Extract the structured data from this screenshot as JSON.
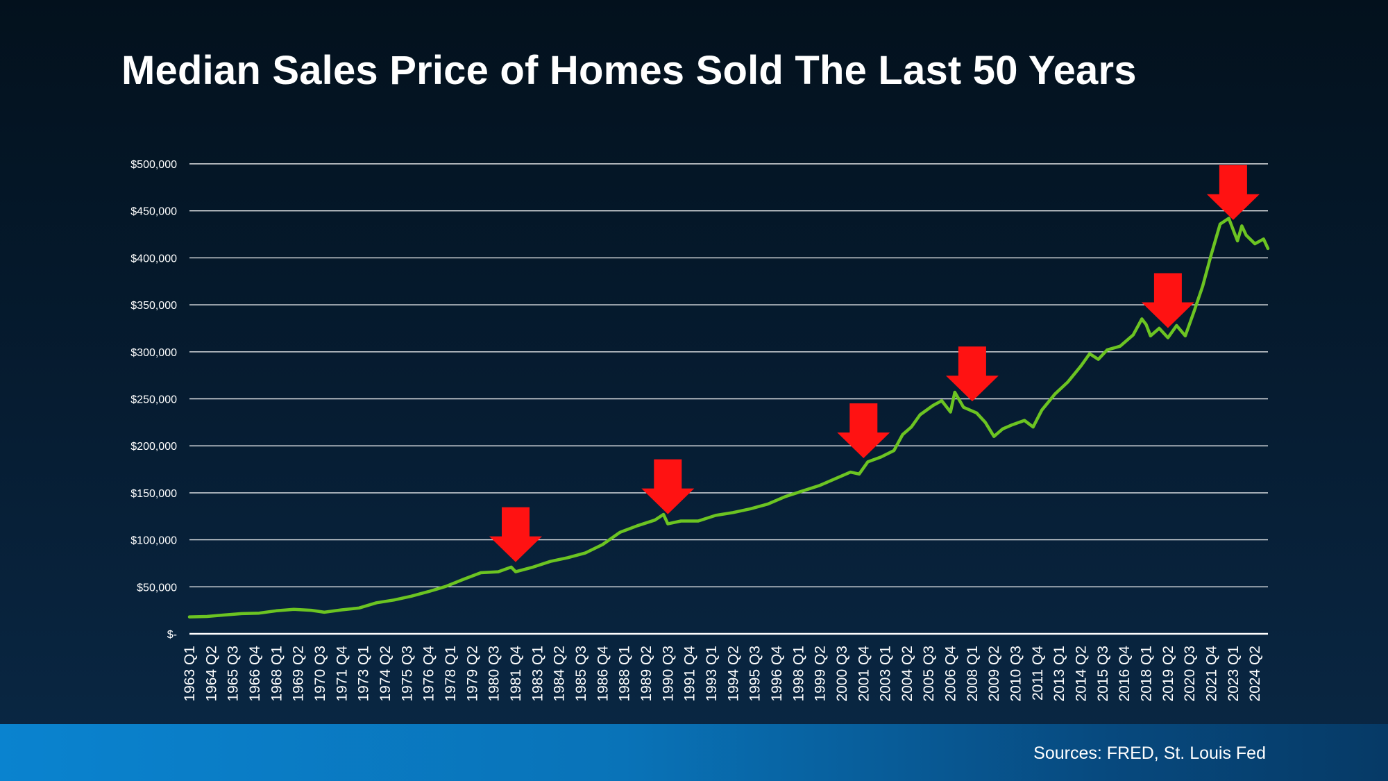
{
  "chart_data": {
    "type": "line",
    "title": "Median Sales Price of Homes Sold The Last 50 Years",
    "xlabel": "",
    "ylabel": "",
    "ylim": [
      0,
      500000
    ],
    "y_ticks": [
      {
        "value": 0,
        "label": "$-"
      },
      {
        "value": 50000,
        "label": "$50,000"
      },
      {
        "value": 100000,
        "label": "$100,000"
      },
      {
        "value": 150000,
        "label": "$150,000"
      },
      {
        "value": 200000,
        "label": "$200,000"
      },
      {
        "value": 250000,
        "label": "$250,000"
      },
      {
        "value": 300000,
        "label": "$300,000"
      },
      {
        "value": 350000,
        "label": "$350,000"
      },
      {
        "value": 400000,
        "label": "$400,000"
      },
      {
        "value": 450000,
        "label": "$450,000"
      },
      {
        "value": 500000,
        "label": "$500,000"
      }
    ],
    "x_tick_labels": [
      "1963 Q1",
      "1964 Q2",
      "1965 Q3",
      "1966 Q4",
      "1968 Q1",
      "1969 Q2",
      "1970 Q3",
      "1971 Q4",
      "1973 Q1",
      "1974 Q2",
      "1975 Q3",
      "1976 Q4",
      "1978 Q1",
      "1979 Q2",
      "1980 Q3",
      "1981 Q4",
      "1983 Q1",
      "1984 Q2",
      "1985 Q3",
      "1986 Q4",
      "1988 Q1",
      "1989 Q2",
      "1990 Q3",
      "1991 Q4",
      "1993 Q1",
      "1994 Q2",
      "1995 Q3",
      "1996 Q4",
      "1998 Q1",
      "1999 Q2",
      "2000 Q3",
      "2001 Q4",
      "2003 Q1",
      "2004 Q2",
      "2005 Q3",
      "2006 Q4",
      "2008 Q1",
      "2009 Q2",
      "2010 Q3",
      "2011 Q4",
      "2013 Q1",
      "2014 Q2",
      "2015 Q3",
      "2016 Q4",
      "2018 Q1",
      "2019 Q2",
      "2020 Q3",
      "2021 Q4",
      "2023 Q1",
      "2024 Q2"
    ],
    "series": [
      {
        "name": "Median Sales Price",
        "color": "#6cc422",
        "points": [
          [
            "1963 Q1",
            18000
          ],
          [
            "1964 Q1",
            18500
          ],
          [
            "1965 Q1",
            20000
          ],
          [
            "1966 Q1",
            21500
          ],
          [
            "1967 Q1",
            22000
          ],
          [
            "1968 Q1",
            24500
          ],
          [
            "1969 Q1",
            26000
          ],
          [
            "1970 Q1",
            25000
          ],
          [
            "1970 Q4",
            23000
          ],
          [
            "1971 Q4",
            25500
          ],
          [
            "1972 Q4",
            27500
          ],
          [
            "1973 Q4",
            33000
          ],
          [
            "1974 Q4",
            36000
          ],
          [
            "1975 Q4",
            40000
          ],
          [
            "1976 Q4",
            45000
          ],
          [
            "1977 Q4",
            50500
          ],
          [
            "1978 Q4",
            58000
          ],
          [
            "1979 Q4",
            65000
          ],
          [
            "1980 Q4",
            66000
          ],
          [
            "1981 Q3",
            71000
          ],
          [
            "1981 Q4",
            66000
          ],
          [
            "1982 Q4",
            71000
          ],
          [
            "1983 Q4",
            77000
          ],
          [
            "1984 Q4",
            81000
          ],
          [
            "1985 Q4",
            86000
          ],
          [
            "1986 Q4",
            95000
          ],
          [
            "1987 Q4",
            108000
          ],
          [
            "1988 Q4",
            115000
          ],
          [
            "1989 Q4",
            121000
          ],
          [
            "1990 Q2",
            127000
          ],
          [
            "1990 Q3",
            117000
          ],
          [
            "1991 Q2",
            120000
          ],
          [
            "1992 Q2",
            120000
          ],
          [
            "1993 Q2",
            126000
          ],
          [
            "1994 Q2",
            129000
          ],
          [
            "1995 Q2",
            133000
          ],
          [
            "1996 Q2",
            138000
          ],
          [
            "1997 Q2",
            146000
          ],
          [
            "1998 Q2",
            152000
          ],
          [
            "1999 Q2",
            158000
          ],
          [
            "2000 Q2",
            166000
          ],
          [
            "2001 Q1",
            172000
          ],
          [
            "2001 Q3",
            170000
          ],
          [
            "2002 Q1",
            183000
          ],
          [
            "2002 Q4",
            188000
          ],
          [
            "2003 Q3",
            195000
          ],
          [
            "2004 Q1",
            212000
          ],
          [
            "2004 Q3",
            220000
          ],
          [
            "2005 Q1",
            233000
          ],
          [
            "2005 Q4",
            243000
          ],
          [
            "2006 Q2",
            248000
          ],
          [
            "2006 Q4",
            236000
          ],
          [
            "2007 Q1",
            257000
          ],
          [
            "2007 Q3",
            241000
          ],
          [
            "2008 Q2",
            235000
          ],
          [
            "2008 Q4",
            225000
          ],
          [
            "2009 Q2",
            210000
          ],
          [
            "2009 Q4",
            218000
          ],
          [
            "2010 Q2",
            222000
          ],
          [
            "2011 Q1",
            227000
          ],
          [
            "2011 Q3",
            220000
          ],
          [
            "2012 Q1",
            238000
          ],
          [
            "2012 Q4",
            255000
          ],
          [
            "2013 Q3",
            268000
          ],
          [
            "2014 Q2",
            285000
          ],
          [
            "2014 Q4",
            298000
          ],
          [
            "2015 Q2",
            292000
          ],
          [
            "2015 Q4",
            302000
          ],
          [
            "2016 Q3",
            306000
          ],
          [
            "2017 Q2",
            318000
          ],
          [
            "2017 Q4",
            335000
          ],
          [
            "2018 Q1",
            329000
          ],
          [
            "2018 Q2",
            317000
          ],
          [
            "2018 Q4",
            325000
          ],
          [
            "2019 Q2",
            315000
          ],
          [
            "2019 Q4",
            328000
          ],
          [
            "2020 Q2",
            317000
          ],
          [
            "2020 Q4",
            343000
          ],
          [
            "2021 Q2",
            370000
          ],
          [
            "2021 Q4",
            404000
          ],
          [
            "2022 Q2",
            436000
          ],
          [
            "2022 Q4",
            442000
          ],
          [
            "2023 Q2",
            418000
          ],
          [
            "2023 Q3",
            434000
          ],
          [
            "2023 Q4",
            424000
          ],
          [
            "2024 Q2",
            415000
          ],
          [
            "2024 Q4",
            420000
          ],
          [
            "2025 Q1",
            410000
          ]
        ]
      }
    ],
    "annotations": [
      {
        "type": "down-arrow",
        "at": "1981 Q4",
        "color": "#ff1212"
      },
      {
        "type": "down-arrow",
        "at": "1990 Q3",
        "color": "#ff1212"
      },
      {
        "type": "down-arrow",
        "at": "2001 Q4",
        "color": "#ff1212"
      },
      {
        "type": "down-arrow",
        "at": "2008 Q1",
        "color": "#ff1212"
      },
      {
        "type": "down-arrow",
        "at": "2019 Q2",
        "color": "#ff1212"
      },
      {
        "type": "down-arrow",
        "at": "2023 Q1",
        "color": "#ff1212"
      }
    ],
    "source": "Sources: FRED, St. Louis Fed",
    "grid": true
  }
}
